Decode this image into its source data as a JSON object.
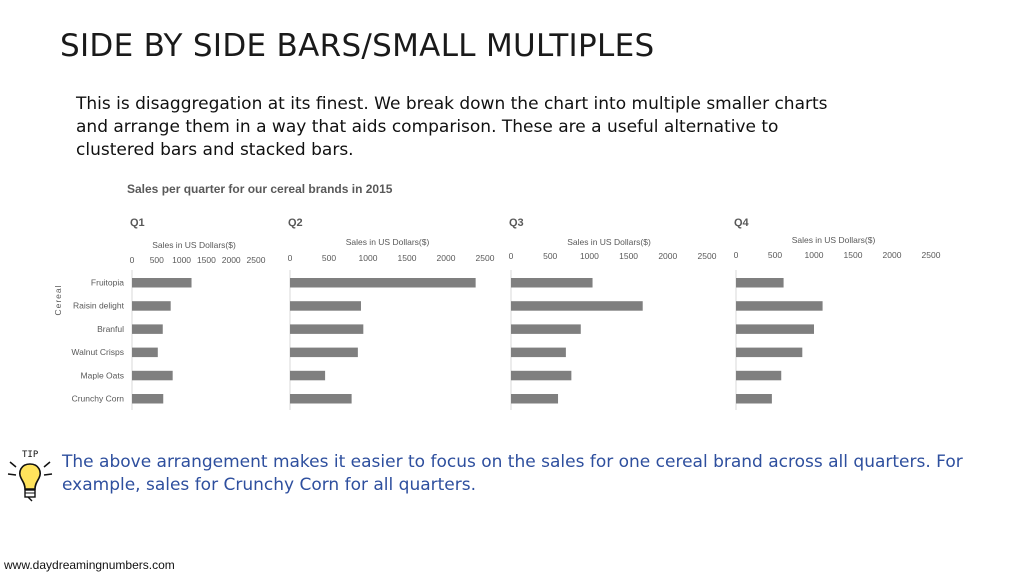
{
  "slide": {
    "title": "SIDE BY SIDE BARS/SMALL MULTIPLES",
    "intro_lines": [
      "This is disaggregation at its finest. We break down the chart into multiple smaller charts",
      "and arrange them in a way that aids comparison. These are a useful alternative to",
      "clustered bars and stacked bars."
    ],
    "tip_label": "TIP",
    "tip_lines": [
      "The above arrangement makes it easier to focus on the sales for one cereal brand across all quarters. For",
      "example, sales for Crunchy Corn for all quarters."
    ],
    "footer": "www.daydreamingnumbers.com"
  },
  "colors": {
    "bar": "#7f7f7f",
    "tip_text": "#2e4f9e",
    "axis": "#d9d9d9"
  },
  "icons": {
    "tip": "lightbulb-icon"
  },
  "chart_data": {
    "type": "bar",
    "title": "Sales per quarter for our cereal brands in 2015",
    "ylabel": "Cereal",
    "xlabel": "Sales in US Dollars($)",
    "categories": [
      "Fruitopia",
      "Raisin delight",
      "Branful",
      "Walnut Crisps",
      "Maple Oats",
      "Crunchy Corn"
    ],
    "xlim": [
      0,
      2500
    ],
    "ticks": [
      0,
      500,
      1000,
      1500,
      2000,
      2500
    ],
    "series": [
      {
        "name": "Q1",
        "values": [
          1200,
          780,
          620,
          520,
          820,
          630
        ]
      },
      {
        "name": "Q2",
        "values": [
          2380,
          910,
          940,
          870,
          450,
          790
        ]
      },
      {
        "name": "Q3",
        "values": [
          1040,
          1680,
          890,
          700,
          770,
          600
        ]
      },
      {
        "name": "Q4",
        "values": [
          610,
          1110,
          1000,
          850,
          580,
          460
        ]
      }
    ]
  }
}
